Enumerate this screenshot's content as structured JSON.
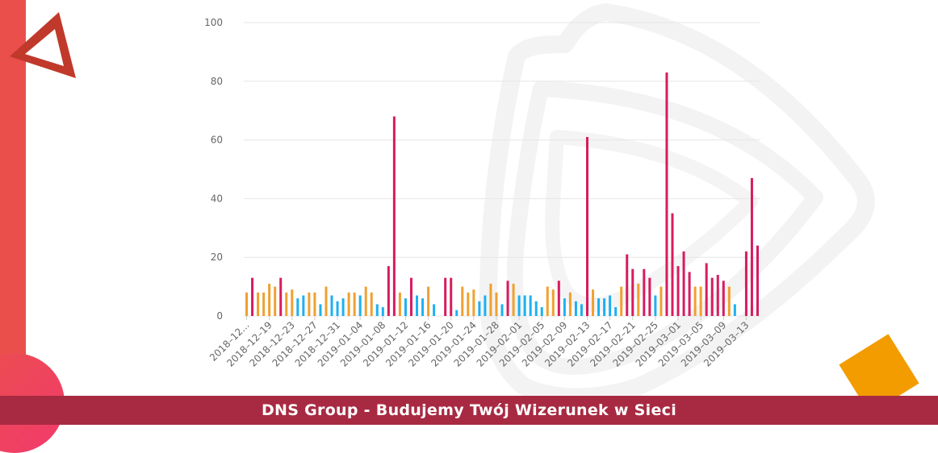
{
  "footer": {
    "text": "DNS Group - Budujemy Twój Wizerunek w Sieci"
  },
  "colors": {
    "orange": "#f0a030",
    "pink": "#d81b60",
    "blue": "#1eb0f0",
    "brand_red": "#ea4f4c",
    "footer_bg": "#a82a42",
    "accent_orange": "#f39c00"
  },
  "icons": {
    "logo": "triangle-logo-icon",
    "watermark": "brand-watermark-icon"
  },
  "chart_data": {
    "type": "bar",
    "ylim": [
      0,
      100
    ],
    "yticks": [
      0,
      20,
      40,
      60,
      80,
      100
    ],
    "grid": true,
    "xtick_labels": [
      "2018–12...",
      "2018–12–19",
      "2018–12–23",
      "2018–12–27",
      "2018–12–31",
      "2019–01–04",
      "2019–01–08",
      "2019–01–12",
      "2019–01–16",
      "2019–01–20",
      "2019–01–24",
      "2019–01–28",
      "2019–02–01",
      "2019–02–05",
      "2019–02–09",
      "2019–02–13",
      "2019–02–17",
      "2019–02–21",
      "2019–02–25",
      "2019–03–01",
      "2019–03–05",
      "2019–03–09",
      "2019–03–13"
    ],
    "bars": [
      {
        "v": 8,
        "c": "orange"
      },
      {
        "v": 13,
        "c": "pink"
      },
      {
        "v": 8,
        "c": "orange"
      },
      {
        "v": 8,
        "c": "orange"
      },
      {
        "v": 11,
        "c": "orange"
      },
      {
        "v": 10,
        "c": "orange"
      },
      {
        "v": 13,
        "c": "pink"
      },
      {
        "v": 8,
        "c": "orange"
      },
      {
        "v": 9,
        "c": "orange"
      },
      {
        "v": 6,
        "c": "blue"
      },
      {
        "v": 7,
        "c": "blue"
      },
      {
        "v": 8,
        "c": "orange"
      },
      {
        "v": 8,
        "c": "orange"
      },
      {
        "v": 4,
        "c": "blue"
      },
      {
        "v": 10,
        "c": "orange"
      },
      {
        "v": 7,
        "c": "blue"
      },
      {
        "v": 5,
        "c": "blue"
      },
      {
        "v": 6,
        "c": "blue"
      },
      {
        "v": 8,
        "c": "orange"
      },
      {
        "v": 8,
        "c": "orange"
      },
      {
        "v": 7,
        "c": "blue"
      },
      {
        "v": 10,
        "c": "orange"
      },
      {
        "v": 8,
        "c": "orange"
      },
      {
        "v": 4,
        "c": "blue"
      },
      {
        "v": 3,
        "c": "blue"
      },
      {
        "v": 17,
        "c": "pink"
      },
      {
        "v": 68,
        "c": "pink"
      },
      {
        "v": 8,
        "c": "orange"
      },
      {
        "v": 6,
        "c": "blue"
      },
      {
        "v": 13,
        "c": "pink"
      },
      {
        "v": 7,
        "c": "blue"
      },
      {
        "v": 6,
        "c": "blue"
      },
      {
        "v": 10,
        "c": "orange"
      },
      {
        "v": 4,
        "c": "blue"
      },
      {
        "v": 0,
        "c": "blue"
      },
      {
        "v": 13,
        "c": "pink"
      },
      {
        "v": 13,
        "c": "pink"
      },
      {
        "v": 2,
        "c": "blue"
      },
      {
        "v": 10,
        "c": "orange"
      },
      {
        "v": 8,
        "c": "orange"
      },
      {
        "v": 9,
        "c": "orange"
      },
      {
        "v": 5,
        "c": "blue"
      },
      {
        "v": 7,
        "c": "blue"
      },
      {
        "v": 11,
        "c": "orange"
      },
      {
        "v": 8,
        "c": "orange"
      },
      {
        "v": 4,
        "c": "blue"
      },
      {
        "v": 12,
        "c": "pink"
      },
      {
        "v": 11,
        "c": "orange"
      },
      {
        "v": 7,
        "c": "blue"
      },
      {
        "v": 7,
        "c": "blue"
      },
      {
        "v": 7,
        "c": "blue"
      },
      {
        "v": 5,
        "c": "blue"
      },
      {
        "v": 3,
        "c": "blue"
      },
      {
        "v": 10,
        "c": "orange"
      },
      {
        "v": 9,
        "c": "orange"
      },
      {
        "v": 12,
        "c": "pink"
      },
      {
        "v": 6,
        "c": "blue"
      },
      {
        "v": 8,
        "c": "orange"
      },
      {
        "v": 5,
        "c": "blue"
      },
      {
        "v": 4,
        "c": "blue"
      },
      {
        "v": 61,
        "c": "pink"
      },
      {
        "v": 9,
        "c": "orange"
      },
      {
        "v": 6,
        "c": "blue"
      },
      {
        "v": 6,
        "c": "blue"
      },
      {
        "v": 7,
        "c": "blue"
      },
      {
        "v": 3,
        "c": "blue"
      },
      {
        "v": 10,
        "c": "orange"
      },
      {
        "v": 21,
        "c": "pink"
      },
      {
        "v": 16,
        "c": "pink"
      },
      {
        "v": 11,
        "c": "orange"
      },
      {
        "v": 16,
        "c": "pink"
      },
      {
        "v": 13,
        "c": "pink"
      },
      {
        "v": 7,
        "c": "blue"
      },
      {
        "v": 10,
        "c": "orange"
      },
      {
        "v": 83,
        "c": "pink"
      },
      {
        "v": 35,
        "c": "pink"
      },
      {
        "v": 17,
        "c": "pink"
      },
      {
        "v": 22,
        "c": "pink"
      },
      {
        "v": 15,
        "c": "pink"
      },
      {
        "v": 10,
        "c": "orange"
      },
      {
        "v": 10,
        "c": "orange"
      },
      {
        "v": 18,
        "c": "pink"
      },
      {
        "v": 13,
        "c": "pink"
      },
      {
        "v": 14,
        "c": "pink"
      },
      {
        "v": 12,
        "c": "pink"
      },
      {
        "v": 10,
        "c": "orange"
      },
      {
        "v": 4,
        "c": "blue"
      },
      {
        "v": 0,
        "c": "blue"
      },
      {
        "v": 22,
        "c": "pink"
      },
      {
        "v": 47,
        "c": "pink"
      },
      {
        "v": 24,
        "c": "pink"
      }
    ]
  }
}
